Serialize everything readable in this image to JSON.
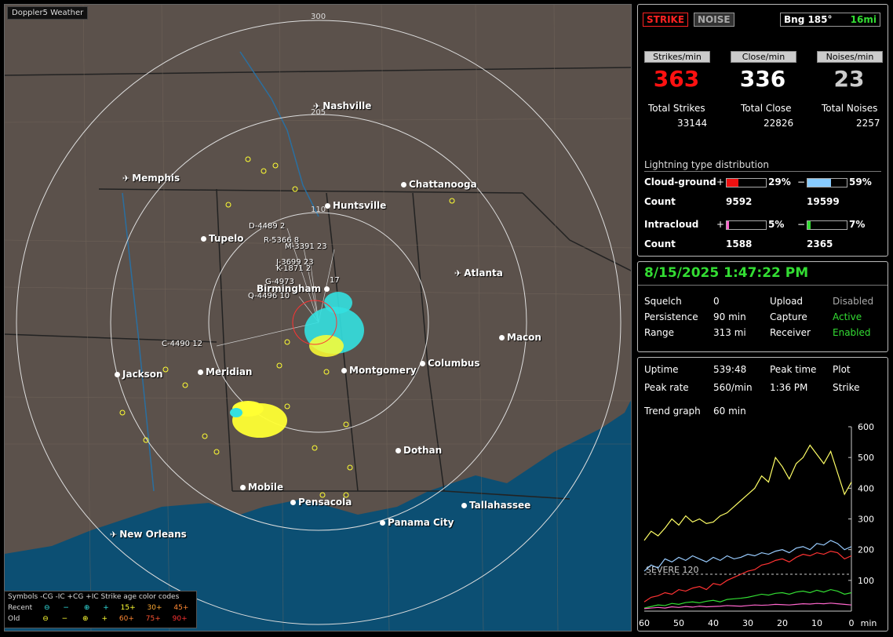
{
  "map": {
    "title": "Doppler5 Weather",
    "ring_labels": [
      "300",
      "205",
      "110"
    ],
    "cities": [
      {
        "name": "Nashville",
        "kind": "airport"
      },
      {
        "name": "Memphis",
        "kind": "airport"
      },
      {
        "name": "Chattanooga",
        "kind": "city"
      },
      {
        "name": "Huntsville",
        "kind": "city"
      },
      {
        "name": "Tupelo",
        "kind": "city"
      },
      {
        "name": "Atlanta",
        "kind": "airport"
      },
      {
        "name": "Birmingham",
        "kind": "city"
      },
      {
        "name": "Macon",
        "kind": "city"
      },
      {
        "name": "Jackson",
        "kind": "city"
      },
      {
        "name": "Meridian",
        "kind": "city"
      },
      {
        "name": "Montgomery",
        "kind": "city"
      },
      {
        "name": "Columbus",
        "kind": "city"
      },
      {
        "name": "Dothan",
        "kind": "city"
      },
      {
        "name": "Mobile",
        "kind": "city"
      },
      {
        "name": "Pensacola",
        "kind": "city"
      },
      {
        "name": "Tallahassee",
        "kind": "city"
      },
      {
        "name": "Panama City",
        "kind": "city"
      },
      {
        "name": "New Orleans",
        "kind": "airport"
      }
    ],
    "storm_labels": [
      "D-4489 2",
      "R-5366 8",
      "M-3391 23",
      "J-3699 23",
      "K-1871 2",
      "G-4973",
      "17",
      "Q-4496 10",
      "C-4490 12"
    ],
    "legend": {
      "title": "Symbols -CG  -IC  +CG  +IC    Strike age color codes",
      "recent_label": "Recent",
      "old_label": "Old",
      "recent_codes": [
        "15+",
        "30+",
        "45+"
      ],
      "old_codes": [
        "60+",
        "75+",
        "90+"
      ]
    }
  },
  "modes": {
    "strike": "STRIKE",
    "noise": "NOISE",
    "bearing": "Bng 185°",
    "distance": "16mi"
  },
  "rates": {
    "strikes_header": "Strikes/min",
    "close_header": "Close/min",
    "noises_header": "Noises/min",
    "strikes": "363",
    "close": "336",
    "noises": "23",
    "total_strikes_label": "Total Strikes",
    "total_close_label": "Total Close",
    "total_noises_label": "Total Noises",
    "total_strikes": "33144",
    "total_close": "22826",
    "total_noises": "2257"
  },
  "distribution": {
    "title": "Lightning type distribution",
    "cg_label": "Cloud-ground",
    "ic_label": "Intracloud",
    "count_label": "Count",
    "cg_pos_pct": "29%",
    "cg_neg_pct": "59%",
    "cg_pos_count": "9592",
    "cg_neg_count": "19599",
    "ic_pos_pct": "5%",
    "ic_neg_pct": "7%",
    "ic_pos_count": "1588",
    "ic_neg_count": "2365",
    "cg_pos_fill": 0.29,
    "cg_neg_fill": 0.59,
    "ic_pos_fill": 0.05,
    "ic_neg_fill": 0.07,
    "plus": "+",
    "minus": "−"
  },
  "status": {
    "datetime": "8/15/2025 1:47:22 PM",
    "squelch_label": "Squelch",
    "squelch": "0",
    "persistence_label": "Persistence",
    "persistence": "90 min",
    "range_label": "Range",
    "range": "313 mi",
    "upload_label": "Upload",
    "upload": "Disabled",
    "capture_label": "Capture",
    "capture": "Active",
    "receiver_label": "Receiver",
    "receiver": "Enabled"
  },
  "trend": {
    "uptime_label": "Uptime",
    "uptime": "539:48",
    "peak_time_label": "Peak time",
    "peak_time": "1:36 PM",
    "plot_label": "Plot",
    "plot": "Strike",
    "peak_rate_label": "Peak rate",
    "peak_rate": "560/min",
    "trend_label": "Trend graph",
    "trend_window": "60 min",
    "severe_label": "SEVERE 120"
  },
  "chart_data": {
    "type": "line",
    "x": [
      60,
      58,
      56,
      54,
      52,
      50,
      48,
      46,
      44,
      42,
      40,
      38,
      36,
      34,
      32,
      30,
      28,
      26,
      24,
      22,
      20,
      18,
      16,
      14,
      12,
      10,
      8,
      6,
      4,
      2,
      0
    ],
    "xticks": [
      "60",
      "50",
      "40",
      "30",
      "20",
      "10",
      "0"
    ],
    "xunit": "min",
    "yticks": [
      "600",
      "500",
      "400",
      "300",
      "200",
      "100"
    ],
    "ylim": [
      0,
      600
    ],
    "series": [
      {
        "color": "#ffff66",
        "values": [
          230,
          260,
          245,
          270,
          300,
          280,
          310,
          290,
          300,
          285,
          290,
          310,
          320,
          340,
          360,
          380,
          400,
          440,
          420,
          500,
          470,
          430,
          480,
          500,
          540,
          510,
          480,
          520,
          450,
          380,
          420
        ]
      },
      {
        "color": "#99ccff",
        "values": [
          130,
          150,
          140,
          170,
          160,
          175,
          165,
          180,
          170,
          160,
          175,
          165,
          180,
          170,
          175,
          185,
          180,
          190,
          185,
          195,
          200,
          190,
          205,
          210,
          200,
          220,
          215,
          230,
          220,
          200,
          210
        ]
      },
      {
        "color": "#ff3333",
        "values": [
          30,
          45,
          50,
          60,
          55,
          70,
          65,
          75,
          80,
          70,
          90,
          85,
          100,
          110,
          120,
          130,
          135,
          150,
          155,
          165,
          170,
          160,
          175,
          185,
          180,
          190,
          185,
          195,
          190,
          170,
          180
        ]
      },
      {
        "color": "#33dd33",
        "values": [
          10,
          15,
          20,
          18,
          25,
          22,
          28,
          30,
          27,
          32,
          35,
          30,
          38,
          40,
          42,
          45,
          50,
          55,
          52,
          58,
          60,
          55,
          62,
          65,
          60,
          68,
          62,
          70,
          65,
          55,
          60
        ]
      },
      {
        "color": "#ff66cc",
        "values": [
          8,
          10,
          12,
          10,
          14,
          12,
          15,
          13,
          16,
          14,
          15,
          16,
          18,
          17,
          16,
          18,
          20,
          19,
          20,
          22,
          21,
          20,
          22,
          24,
          23,
          25,
          24,
          26,
          24,
          22,
          20
        ]
      }
    ],
    "threshold": 120
  }
}
